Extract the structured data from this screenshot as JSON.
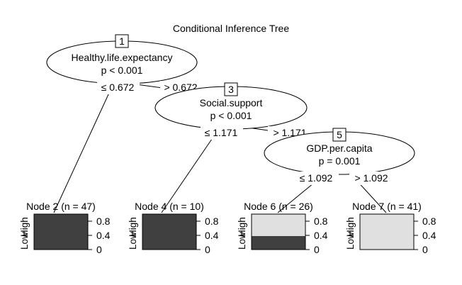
{
  "title": "Conditional Inference Tree",
  "inner_nodes": [
    {
      "id": "1",
      "variable": "Healthy.life.expectancy",
      "p": "p < 0.001",
      "left": "≤ 0.672",
      "right": "> 0.672"
    },
    {
      "id": "3",
      "variable": "Social.support",
      "p": "p < 0.001",
      "left": "≤ 1.171",
      "right": "> 1.171"
    },
    {
      "id": "5",
      "variable": "GDP.per.capita",
      "p": "p = 0.001",
      "left": "≤ 1.092",
      "right": "> 1.092"
    }
  ],
  "terminal_nodes": [
    {
      "label": "Node 2 (n = 47)",
      "high_fraction": 1.0
    },
    {
      "label": "Node 4 (n = 10)",
      "high_fraction": 1.0
    },
    {
      "label": "Node 6 (n = 26)",
      "high_fraction": 0.38
    },
    {
      "label": "Node 7 (n = 41)",
      "high_fraction": 0.0
    }
  ],
  "class_labels": {
    "low": "Low",
    "high": "High"
  },
  "axis_ticks": [
    "0.8",
    "0.4",
    "0"
  ],
  "colors": {
    "high_class": "#404040",
    "low_class": "#e0e0e0"
  }
}
